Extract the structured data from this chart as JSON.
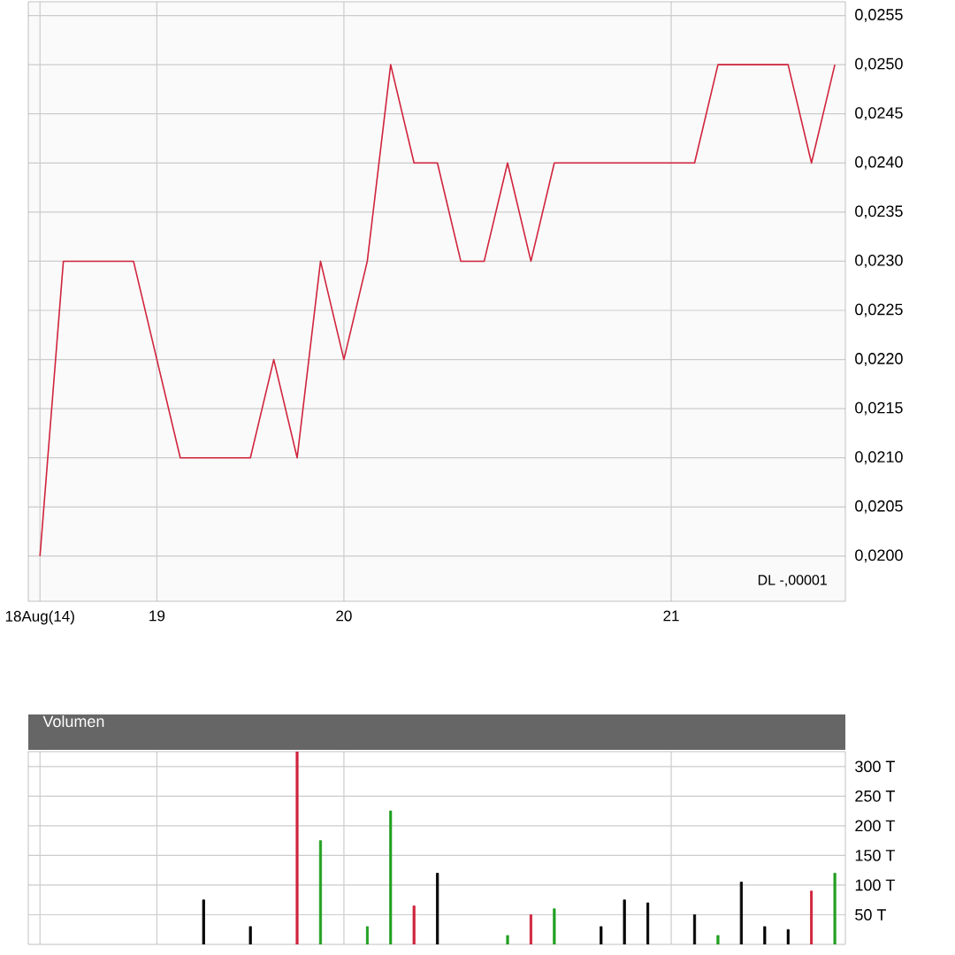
{
  "chart_data": [
    {
      "type": "line",
      "color": "#d0243c",
      "categories": [
        "18Aug(14)",
        null,
        null,
        null,
        null,
        "19",
        null,
        null,
        null,
        null,
        null,
        null,
        null,
        "20",
        null,
        null,
        null,
        null,
        null,
        null,
        null,
        null,
        null,
        null,
        null,
        null,
        null,
        "21",
        null,
        null,
        null,
        null,
        null,
        null,
        null
      ],
      "values": [
        0.02,
        0.023,
        0.023,
        0.023,
        0.023,
        0.022,
        0.021,
        0.021,
        0.021,
        0.021,
        0.022,
        0.021,
        0.023,
        0.022,
        0.023,
        0.025,
        0.024,
        0.024,
        0.023,
        0.023,
        0.024,
        0.023,
        0.024,
        0.024,
        0.024,
        0.024,
        0.024,
        0.024,
        0.024,
        0.025,
        0.025,
        0.025,
        0.025,
        0.024,
        0.025
      ],
      "ylim": [
        0.01954,
        0.02564
      ],
      "yticks": [
        {
          "value": 0.02,
          "label": "0,0200"
        },
        {
          "value": 0.0205,
          "label": "0,0205"
        },
        {
          "value": 0.021,
          "label": "0,0210"
        },
        {
          "value": 0.0215,
          "label": "0,0215"
        },
        {
          "value": 0.022,
          "label": "0,0220"
        },
        {
          "value": 0.0225,
          "label": "0,0225"
        },
        {
          "value": 0.023,
          "label": "0,0230"
        },
        {
          "value": 0.0235,
          "label": "0,0235"
        },
        {
          "value": 0.024,
          "label": "0,0240"
        },
        {
          "value": 0.0245,
          "label": "0,0245"
        },
        {
          "value": 0.025,
          "label": "0,0250"
        },
        {
          "value": 0.0255,
          "label": "0,0255"
        }
      ],
      "grid": true,
      "annotations": [
        "DL -,00001"
      ]
    },
    {
      "type": "bar",
      "title": "Volumen",
      "categories": [
        null,
        null,
        null,
        null,
        null,
        null,
        null,
        null,
        null,
        null,
        null,
        null,
        null,
        null,
        null,
        null,
        null,
        null,
        null,
        null,
        null,
        null,
        null,
        null,
        null,
        null,
        null,
        null,
        null,
        null,
        null,
        null,
        null,
        null,
        null
      ],
      "values": [
        null,
        null,
        null,
        null,
        null,
        null,
        null,
        75,
        null,
        30,
        null,
        325,
        175,
        null,
        30,
        225,
        65,
        120,
        null,
        null,
        15,
        50,
        60,
        null,
        30,
        75,
        70,
        null,
        50,
        15,
        105,
        30,
        25,
        90,
        120
      ],
      "colors": [
        null,
        null,
        null,
        null,
        null,
        null,
        null,
        "#000000",
        null,
        "#000000",
        null,
        "#d0243c",
        "#22a022",
        null,
        "#22a022",
        "#22a022",
        "#d0243c",
        "#000000",
        null,
        null,
        "#22a022",
        "#d0243c",
        "#22a022",
        null,
        "#000000",
        "#000000",
        "#000000",
        null,
        "#000000",
        "#22a022",
        "#000000",
        "#000000",
        "#000000",
        "#d0243c",
        "#22a022"
      ],
      "tick_labels": "y",
      "ylim": [
        0,
        325
      ],
      "yticks": [
        {
          "value": 50,
          "label": "50 T"
        },
        {
          "value": 100,
          "label": "100 T"
        },
        {
          "value": 150,
          "label": "150 T"
        },
        {
          "value": 200,
          "label": "200 T"
        },
        {
          "value": 250,
          "label": "250 T"
        },
        {
          "value": 300,
          "label": "300 T"
        }
      ],
      "grid": true
    }
  ]
}
